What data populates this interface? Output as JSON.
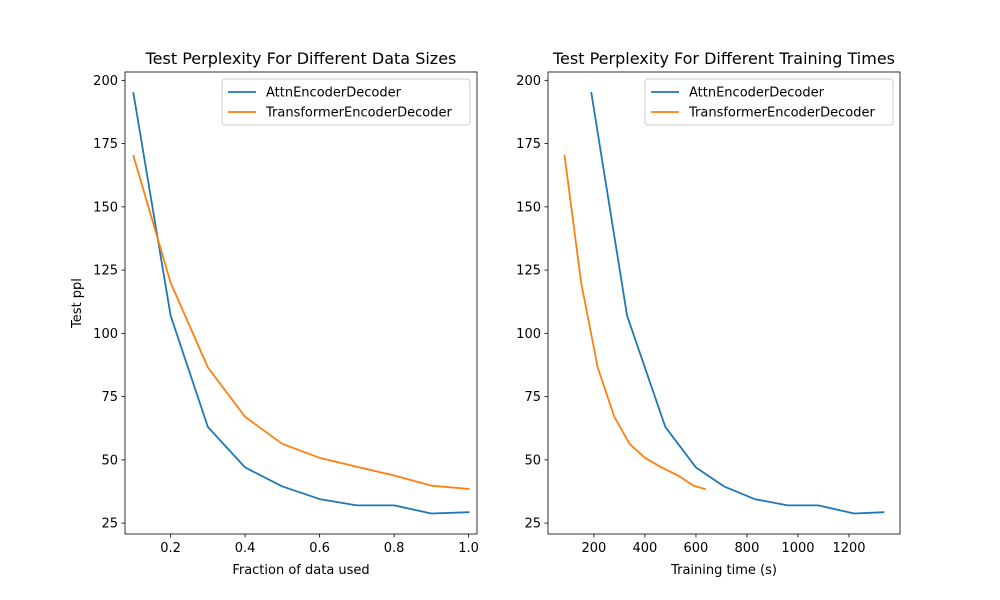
{
  "chart_data": [
    {
      "type": "line",
      "title": "Test Perplexity For Different Data Sizes",
      "xlabel": "Fraction of data used",
      "ylabel": "Test ppl",
      "xlim": [
        0.0775,
        1.0225
      ],
      "ylim": [
        20.7,
        203.3
      ],
      "xticks": [
        "0.2",
        "0.4",
        "0.6",
        "0.8",
        "1.0"
      ],
      "yticks": [
        "25",
        "50",
        "75",
        "100",
        "125",
        "150",
        "175",
        "200"
      ],
      "grid": false,
      "legend": "top-right",
      "series": [
        {
          "name": "AttnEncoderDecoder",
          "color": "#1f77b4",
          "x": [
            0.1,
            0.2,
            0.3,
            0.4,
            0.5,
            0.6,
            0.7,
            0.8,
            0.9,
            1.0
          ],
          "y": [
            195,
            107,
            63,
            47,
            39.5,
            34.5,
            32,
            32,
            28.8,
            29.3
          ]
        },
        {
          "name": "TransformerEncoderDecoder",
          "color": "#ff7f0e",
          "x": [
            0.1,
            0.2,
            0.3,
            0.4,
            0.5,
            0.6,
            0.7,
            0.8,
            0.9,
            1.0
          ],
          "y": [
            170.2,
            120,
            86.5,
            67,
            56.3,
            50.8,
            47.3,
            43.8,
            39.8,
            38.5
          ]
        }
      ]
    },
    {
      "type": "line",
      "title": "Test Perplexity For Different Training Times",
      "xlabel": "Training time (s)",
      "ylabel": "",
      "xlim": [
        20,
        1400
      ],
      "ylim": [
        20.7,
        203.3
      ],
      "xticks": [
        "200",
        "400",
        "600",
        "800",
        "1000",
        "1200"
      ],
      "yticks": [
        "25",
        "50",
        "75",
        "100",
        "125",
        "150",
        "175",
        "200"
      ],
      "grid": false,
      "legend": "top-right",
      "series": [
        {
          "name": "AttnEncoderDecoder",
          "color": "#1f77b4",
          "x": [
            190,
            330,
            480,
            600,
            710,
            830,
            960,
            1080,
            1220,
            1335
          ],
          "y": [
            195,
            107,
            63,
            47,
            39.5,
            34.5,
            32,
            32,
            28.8,
            29.3
          ]
        },
        {
          "name": "TransformerEncoderDecoder",
          "color": "#ff7f0e",
          "x": [
            85,
            150,
            215,
            280,
            340,
            400,
            460,
            530,
            590,
            635
          ],
          "y": [
            170.2,
            120,
            86.5,
            67,
            56.3,
            50.8,
            47.3,
            43.8,
            39.8,
            38.5
          ]
        }
      ]
    }
  ]
}
